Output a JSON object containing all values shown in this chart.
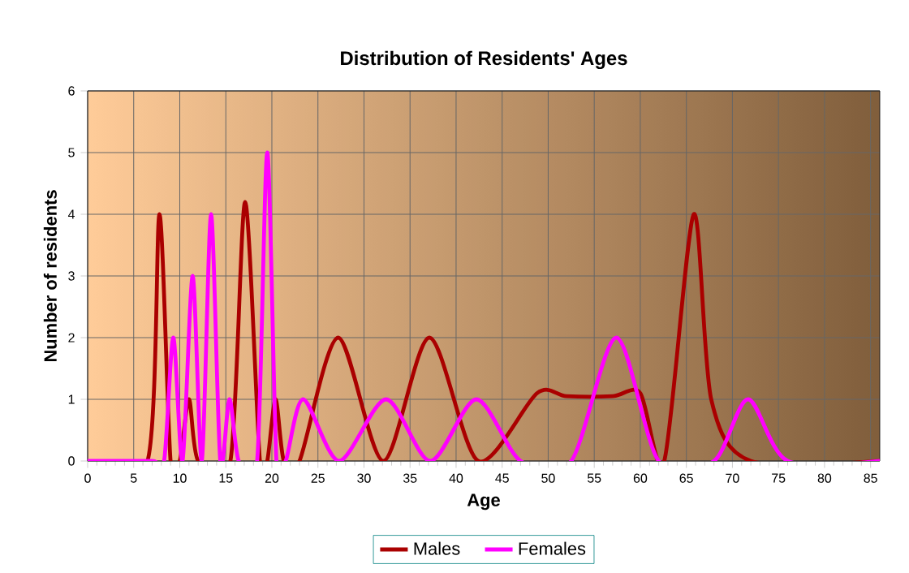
{
  "chart_data": {
    "type": "line",
    "title": "Distribution of Residents' Ages",
    "xlabel": "Age",
    "ylabel": "Number of residents",
    "xlim": [
      0,
      86
    ],
    "xticks": [
      0,
      5,
      10,
      15,
      20,
      25,
      30,
      35,
      40,
      45,
      50,
      55,
      60,
      65,
      70,
      75,
      80,
      85
    ],
    "ylim": [
      0,
      6
    ],
    "yticks": [
      0,
      1,
      2,
      3,
      4,
      5,
      6
    ],
    "grid": true,
    "legend": "bottom",
    "marker": "none",
    "line_style": "solid",
    "series": [
      {
        "name": "Males",
        "color": "#aa0000",
        "x": [
          0,
          6.5,
          7.8,
          9,
          10,
          11,
          12,
          15.5,
          17.1,
          18.7,
          19.5,
          20.4,
          21.3,
          23,
          27.2,
          32.1,
          37.1,
          42.4,
          48.8,
          52,
          57,
          60,
          62.6,
          65.8,
          67.7,
          72,
          86
        ],
        "values": [
          0,
          0,
          4,
          0,
          0,
          1,
          0,
          0,
          4.2,
          0,
          0,
          1,
          0,
          0,
          2,
          0,
          2,
          0,
          1.1,
          1.05,
          1.05,
          1.1,
          0,
          4,
          1,
          0,
          0
        ]
      },
      {
        "name": "Females",
        "color": "#ff00ff",
        "x": [
          0,
          7,
          8.3,
          9.3,
          10.3,
          11.4,
          12.4,
          13.4,
          14.4,
          15.4,
          16.4,
          18.4,
          19.5,
          20.5,
          21.5,
          23.4,
          27.3,
          32.4,
          37.2,
          42.2,
          47,
          52.5,
          57.4,
          62,
          68,
          71.7,
          76,
          86
        ],
        "values": [
          0,
          0,
          0,
          2,
          0,
          3,
          0,
          4,
          0,
          1,
          0,
          0,
          5,
          0,
          0,
          1,
          0,
          1,
          0,
          1,
          0,
          0,
          2,
          0,
          0,
          1,
          0,
          0
        ]
      }
    ]
  }
}
